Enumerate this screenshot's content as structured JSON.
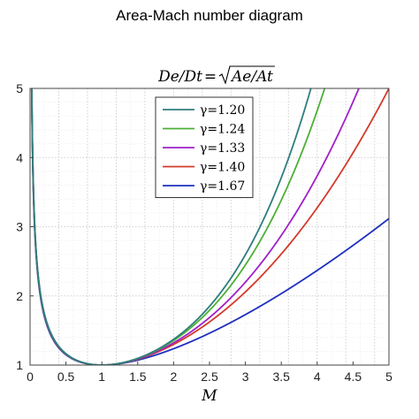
{
  "figure": {
    "title": "Area-Mach number diagram"
  },
  "chart_data": {
    "type": "line",
    "title": "De/Dt = √(Ae/At)",
    "title_parts": {
      "lhs": "De/Dt",
      "eq": "=",
      "rad": "Ae/At"
    },
    "xlabel": "M",
    "ylabel": "",
    "xlim": [
      0,
      5
    ],
    "ylim": [
      1,
      5
    ],
    "xticks": [
      0,
      0.5,
      1,
      1.5,
      2,
      2.5,
      3,
      3.5,
      4,
      4.5,
      5
    ],
    "xtick_labels": [
      "0",
      "0.5",
      "1",
      "1.5",
      "2",
      "2.5",
      "3",
      "3.5",
      "4",
      "4.5",
      "5"
    ],
    "yticks": [
      1,
      2,
      3,
      4,
      5
    ],
    "ytick_labels": [
      "1",
      "2",
      "3",
      "4",
      "5"
    ],
    "grid": true,
    "legend_position": "top-center",
    "series": [
      {
        "name": "γ=1.20",
        "gamma": 1.2,
        "color": "#2e7d7e"
      },
      {
        "name": "γ=1.24",
        "gamma": 1.24,
        "color": "#4caf35"
      },
      {
        "name": "γ=1.33",
        "gamma": 1.33,
        "color": "#a020c8"
      },
      {
        "name": "γ=1.40",
        "gamma": 1.4,
        "color": "#d43a2a"
      },
      {
        "name": "γ=1.67",
        "gamma": 1.67,
        "color": "#1f2fbf"
      }
    ]
  }
}
